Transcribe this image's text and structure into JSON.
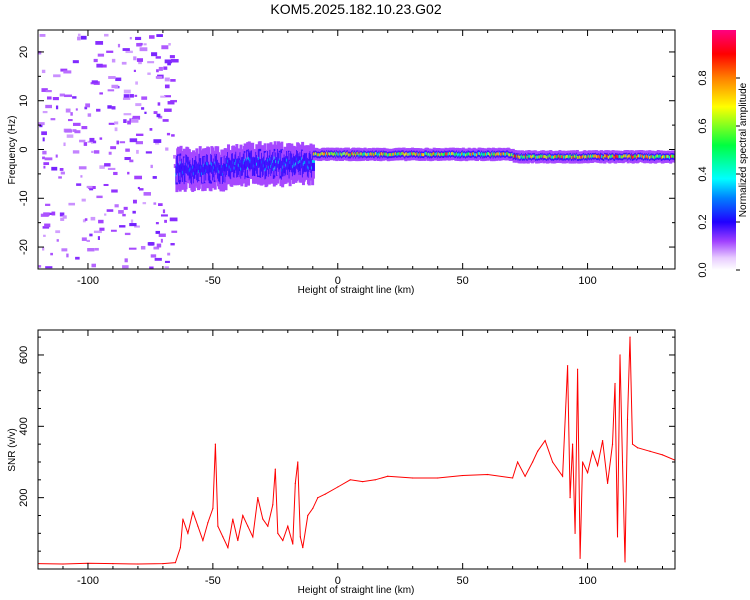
{
  "title": "KOM5.2025.182.10.23.G02",
  "chart_data": [
    {
      "type": "heatmap",
      "title": "KOM5.2025.182.10.23.G02",
      "xlabel": "Height of straight line (km)",
      "ylabel": "Frequency (Hz)",
      "xlim": [
        -120,
        135
      ],
      "ylim": [
        -24.5,
        24.5
      ],
      "x_ticks": [
        -100,
        -50,
        0,
        50,
        100
      ],
      "y_ticks": [
        -20,
        -10,
        0,
        10,
        20
      ],
      "colorbar": {
        "label": "Normalized spectral amplitude",
        "range": [
          0,
          1
        ],
        "ticks": [
          "0.0",
          "0.2",
          "0.4",
          "0.6",
          "0.8"
        ],
        "colors": [
          "#ffffff",
          "#d49cff",
          "#8a00ff",
          "#0000ff",
          "#00ffff",
          "#00ff00",
          "#ffff00",
          "#ff8000",
          "#ff0000",
          "#ff0080"
        ]
      },
      "features": [
        {
          "x_range": [
            -120,
            -65
          ],
          "freq_range": [
            -24,
            24
          ],
          "amplitude": 0.1
        },
        {
          "x_range": [
            -65,
            -45
          ],
          "freq_center": -4,
          "amplitude": 0.3
        },
        {
          "x_range": [
            -45,
            -10
          ],
          "freq_center": -3,
          "amplitude": 0.35
        },
        {
          "x_range": [
            -10,
            70
          ],
          "freq_center": -1,
          "amplitude": 0.7
        },
        {
          "x_range": [
            70,
            135
          ],
          "freq_center": -1.5,
          "amplitude": 0.75
        }
      ],
      "grid": false
    },
    {
      "type": "line",
      "xlabel": "Height of straight line (km)",
      "ylabel": "SNR (v/v)",
      "xlim": [
        -120,
        135
      ],
      "ylim": [
        0,
        670
      ],
      "x_ticks": [
        -100,
        -50,
        0,
        50,
        100
      ],
      "y_ticks": [
        200,
        400,
        600
      ],
      "color": "#ff0000",
      "x": [
        -120,
        -110,
        -100,
        -90,
        -80,
        -70,
        -65,
        -63,
        -62,
        -60,
        -58,
        -56,
        -54,
        -52,
        -50,
        -49,
        -48,
        -46,
        -44,
        -42,
        -40,
        -38,
        -36,
        -34,
        -32,
        -30,
        -28,
        -26,
        -25,
        -24,
        -22,
        -20,
        -18,
        -17,
        -16,
        -15,
        -14,
        -12,
        -10,
        -8,
        -5,
        0,
        5,
        10,
        15,
        20,
        30,
        40,
        50,
        60,
        70,
        72,
        75,
        78,
        80,
        83,
        86,
        90,
        92,
        93,
        94,
        95,
        96,
        97,
        98,
        100,
        102,
        104,
        106,
        108,
        110,
        111,
        112,
        113,
        114,
        115,
        116,
        117,
        118,
        120,
        125,
        130,
        135
      ],
      "y": [
        15,
        14,
        16,
        15,
        14,
        15,
        18,
        60,
        140,
        100,
        160,
        120,
        80,
        130,
        170,
        350,
        120,
        90,
        60,
        140,
        80,
        150,
        120,
        90,
        200,
        140,
        120,
        180,
        280,
        100,
        80,
        120,
        70,
        240,
        300,
        90,
        60,
        150,
        170,
        200,
        210,
        230,
        250,
        245,
        250,
        260,
        255,
        255,
        262,
        265,
        255,
        300,
        260,
        300,
        330,
        360,
        300,
        260,
        570,
        200,
        350,
        100,
        560,
        30,
        300,
        270,
        330,
        290,
        360,
        240,
        350,
        520,
        90,
        600,
        300,
        20,
        420,
        650,
        350,
        340,
        330,
        320,
        305
      ]
    }
  ]
}
